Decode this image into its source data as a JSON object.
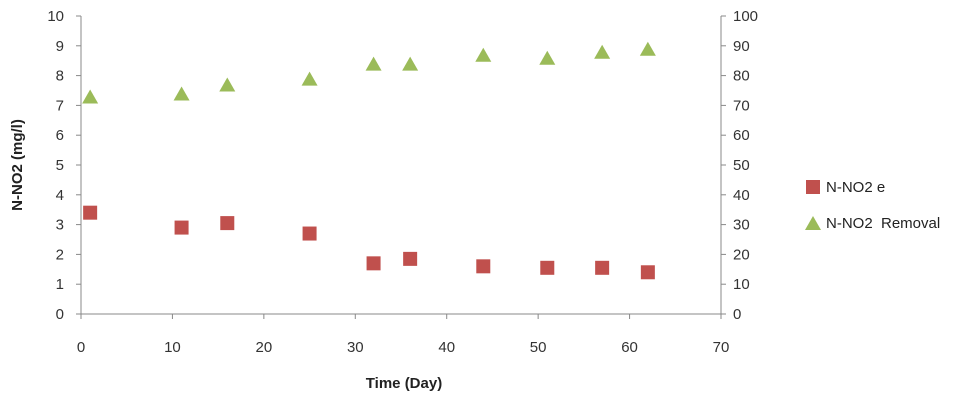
{
  "chart_data": {
    "type": "scatter",
    "xlabel": "Time (Day)",
    "ylabel": "N-NO2 (mg/l)",
    "xlim": [
      0,
      70
    ],
    "ylim": [
      0,
      10
    ],
    "y2lim": [
      0,
      100
    ],
    "xticks": [
      "0",
      "10",
      "20",
      "30",
      "40",
      "50",
      "60",
      "70"
    ],
    "yticks": [
      "0",
      "1",
      "2",
      "3",
      "4",
      "5",
      "6",
      "7",
      "8",
      "9",
      "10"
    ],
    "y2ticks": [
      "0",
      "10",
      "20",
      "30",
      "40",
      "50",
      "60",
      "70",
      "80",
      "90",
      "100"
    ],
    "grid": false,
    "legend_position": "right",
    "series": [
      {
        "name": "N-NO2 e",
        "axis": "left",
        "marker": "square",
        "color": "#c0504d",
        "x": [
          1,
          11,
          16,
          25,
          32,
          36,
          44,
          51,
          57,
          62
        ],
        "y": [
          3.4,
          2.9,
          3.05,
          2.7,
          1.7,
          1.85,
          1.6,
          1.55,
          1.55,
          1.4
        ]
      },
      {
        "name": "N-NO2  Removal",
        "axis": "right",
        "marker": "triangle",
        "color": "#9bbb59",
        "x": [
          1,
          11,
          16,
          25,
          32,
          36,
          44,
          51,
          57,
          62
        ],
        "y": [
          73,
          74,
          77,
          79,
          84,
          84,
          87,
          86,
          88,
          89
        ]
      }
    ]
  }
}
